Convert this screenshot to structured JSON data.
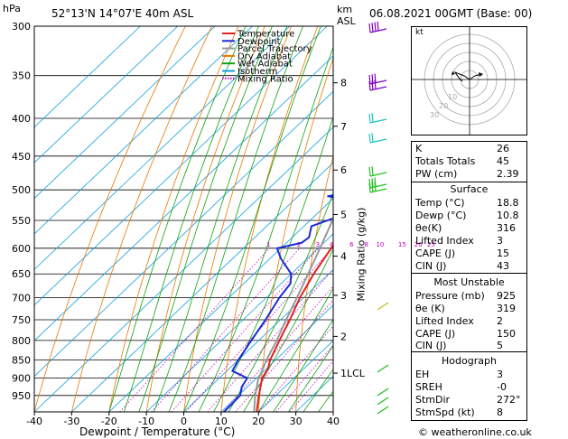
{
  "header": {
    "station": "52°13'N  14°07'E  40m  ASL",
    "hpa_label": "hPa",
    "km_label": "km",
    "asl_label": "ASL",
    "datetime": "06.08.2021  00GMT  (Base: 00)"
  },
  "chart_data": {
    "type": "skew-t",
    "xlabel": "Dewpoint / Temperature (°C)",
    "ylabel_right": "Mixing Ratio (g/kg)",
    "x_ticks": [
      -40,
      -30,
      -20,
      -10,
      0,
      10,
      20,
      30,
      40
    ],
    "pressure_ticks": [
      300,
      350,
      400,
      450,
      500,
      550,
      600,
      650,
      700,
      750,
      800,
      850,
      900,
      950
    ],
    "xlim": [
      -40,
      40
    ],
    "plim": [
      300,
      1000
    ],
    "km_ticks": [
      {
        "label": "8",
        "p": 358
      },
      {
        "label": "7",
        "p": 410
      },
      {
        "label": "6",
        "p": 470
      },
      {
        "label": "5",
        "p": 540
      },
      {
        "label": "4",
        "p": 615
      },
      {
        "label": "3",
        "p": 695
      },
      {
        "label": "2",
        "p": 790
      },
      {
        "label": "1LCL",
        "p": 886
      }
    ],
    "mixing_ratio_labels": [
      "1",
      "2",
      "3",
      "4",
      "6",
      "8",
      "10",
      "15",
      "20",
      "25"
    ],
    "mixing_ratio_values": [
      1,
      2,
      3,
      4,
      6,
      8,
      10,
      15,
      20,
      25
    ],
    "legend": [
      {
        "name": "Temperature",
        "color": "#e02020",
        "style": "solid"
      },
      {
        "name": "Dewpoint",
        "color": "#1a2bd6",
        "style": "solid"
      },
      {
        "name": "Parcel Trajectory",
        "color": "#999999",
        "style": "solid"
      },
      {
        "name": "Dry Adiabat",
        "color": "#e87800",
        "style": "solid"
      },
      {
        "name": "Wet Adiabat",
        "color": "#10a010",
        "style": "solid"
      },
      {
        "name": "Isotherm",
        "color": "#10a0e0",
        "style": "solid"
      },
      {
        "name": "Mixing Ratio",
        "color": "#c000c0",
        "style": "dotted"
      }
    ],
    "series": [
      {
        "name": "Temperature",
        "color": "#e02020",
        "points": [
          [
            1000,
            19.5
          ],
          [
            950,
            15.5
          ],
          [
            925,
            13.5
          ],
          [
            900,
            11.5
          ],
          [
            875,
            10.5
          ],
          [
            850,
            8.5
          ],
          [
            800,
            5.5
          ],
          [
            750,
            2.5
          ],
          [
            700,
            -1
          ],
          [
            650,
            -4
          ],
          [
            600,
            -6.5
          ],
          [
            550,
            -9.5
          ],
          [
            500,
            -13.5
          ],
          [
            450,
            -18.5
          ],
          [
            400,
            -24
          ],
          [
            350,
            -30.5
          ],
          [
            300,
            -39
          ]
        ]
      },
      {
        "name": "Dewpoint",
        "color": "#1a2bd6",
        "points": [
          [
            1000,
            10.8
          ],
          [
            950,
            10.5
          ],
          [
            925,
            8.5
          ],
          [
            900,
            7.5
          ],
          [
            880,
            1.5
          ],
          [
            850,
            0
          ],
          [
            800,
            -2
          ],
          [
            750,
            -4
          ],
          [
            700,
            -6.5
          ],
          [
            670,
            -7.5
          ],
          [
            650,
            -10
          ],
          [
            620,
            -17
          ],
          [
            600,
            -21
          ],
          [
            590,
            -16
          ],
          [
            580,
            -15.5
          ],
          [
            560,
            -18
          ],
          [
            545,
            -14
          ],
          [
            530,
            -17
          ],
          [
            520,
            -13
          ],
          [
            510,
            -22
          ],
          [
            500,
            -14
          ],
          [
            480,
            -16
          ],
          [
            450,
            -25
          ],
          [
            420,
            -35
          ],
          [
            400,
            -35
          ],
          [
            380,
            -32
          ],
          [
            350,
            -25
          ],
          [
            340,
            -25
          ],
          [
            320,
            -31
          ],
          [
            310,
            -34
          ],
          [
            300,
            -34
          ]
        ]
      },
      {
        "name": "Parcel Trajectory",
        "color": "#999999",
        "points": [
          [
            1000,
            18.8
          ],
          [
            950,
            14.5
          ],
          [
            925,
            12.5
          ],
          [
            900,
            10.5
          ],
          [
            886,
            9.8
          ],
          [
            850,
            7.5
          ],
          [
            800,
            4.8
          ],
          [
            750,
            1.5
          ],
          [
            700,
            -1.8
          ],
          [
            650,
            -5.5
          ],
          [
            600,
            -9.5
          ],
          [
            550,
            -14
          ],
          [
            500,
            -19
          ],
          [
            450,
            -24.5
          ],
          [
            400,
            -31
          ],
          [
            350,
            -39
          ],
          [
            300,
            -48
          ]
        ]
      }
    ]
  },
  "hodograph": {
    "label": "kt",
    "ring_labels": [
      "10",
      "20",
      "30",
      "40"
    ]
  },
  "indices": {
    "top": [
      {
        "k": "K",
        "v": "26"
      },
      {
        "k": "Totals Totals",
        "v": "45"
      },
      {
        "k": "PW (cm)",
        "v": "2.39"
      }
    ],
    "surface": {
      "title": "Surface",
      "rows": [
        {
          "k": "Temp (°C)",
          "v": "18.8"
        },
        {
          "k": "Dewp (°C)",
          "v": "10.8"
        },
        {
          "k": "θe(K)",
          "v": "316"
        },
        {
          "k": "Lifted Index",
          "v": "3"
        },
        {
          "k": "CAPE (J)",
          "v": "15"
        },
        {
          "k": "CIN (J)",
          "v": "43"
        }
      ]
    },
    "most_unstable": {
      "title": "Most Unstable",
      "rows": [
        {
          "k": "Pressure (mb)",
          "v": "925"
        },
        {
          "k": "θe (K)",
          "v": "319"
        },
        {
          "k": "Lifted Index",
          "v": "2"
        },
        {
          "k": "CAPE (J)",
          "v": "150"
        },
        {
          "k": "CIN (J)",
          "v": "5"
        }
      ]
    },
    "hodograph": {
      "title": "Hodograph",
      "rows": [
        {
          "k": "EH",
          "v": "3"
        },
        {
          "k": "SREH",
          "v": "-0"
        },
        {
          "k": "StmDir",
          "v": "272°"
        },
        {
          "k": "StmSpd (kt)",
          "v": "8"
        }
      ]
    }
  },
  "copyright": "© weatheronline.co.uk",
  "colors": {
    "temperature": "#e02020",
    "dewpoint": "#1a2bd6",
    "parcel": "#999999",
    "dry_adiabat": "#e87800",
    "wet_adiabat": "#10a010",
    "isotherm": "#10a0e0",
    "mixing_ratio": "#c000c0",
    "wind_barbs_upper": "#8000c0",
    "wind_barbs_mid": "#20c0c0",
    "wind_barbs_low": "#20c020",
    "wind_barbs_surface": "#c0c020"
  }
}
